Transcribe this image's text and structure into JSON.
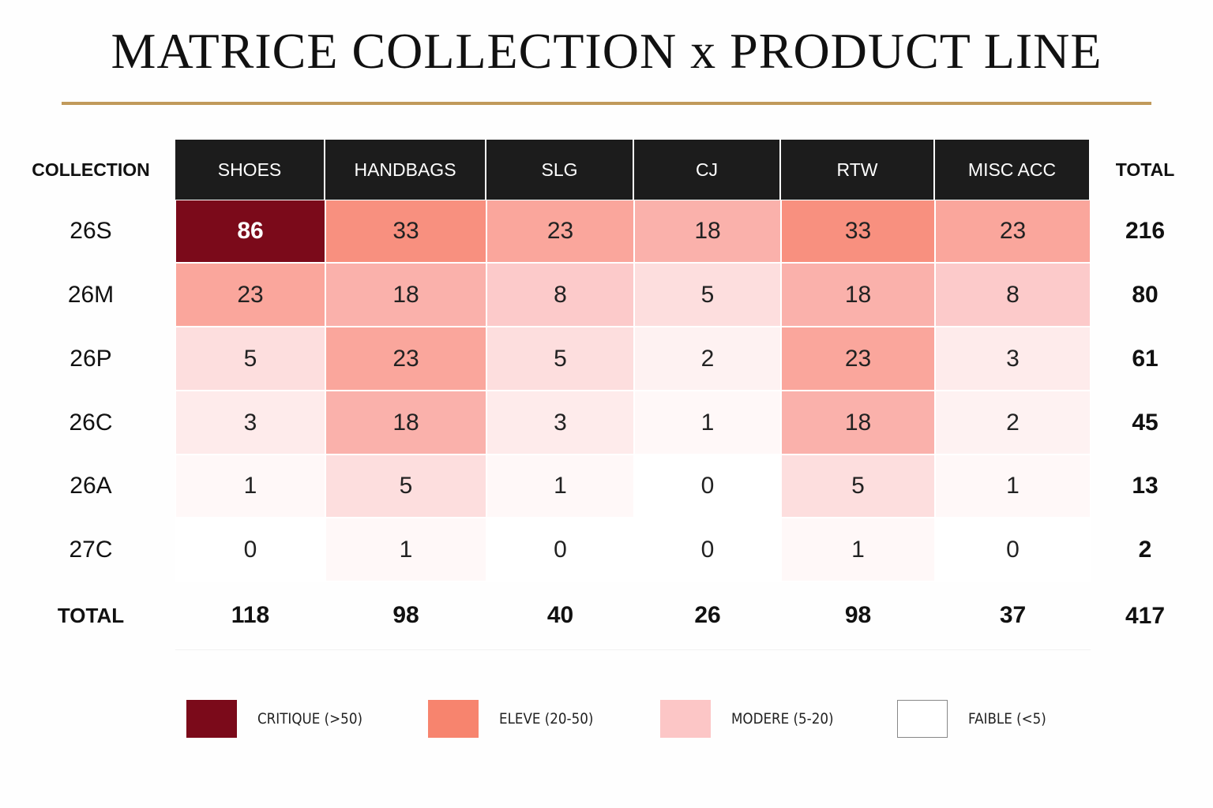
{
  "title": "MATRICE COLLECTION x PRODUCT LINE",
  "table": {
    "corner": "COLLECTION",
    "columns": [
      "SHOES",
      "HANDBAGS",
      "SLG",
      "CJ",
      "RTW",
      "MISC ACC"
    ],
    "total_header": "TOTAL",
    "rows": [
      {
        "label": "26S",
        "values": [
          86,
          33,
          23,
          18,
          33,
          23
        ],
        "total": 216
      },
      {
        "label": "26M",
        "values": [
          23,
          18,
          8,
          5,
          18,
          8
        ],
        "total": 80
      },
      {
        "label": "26P",
        "values": [
          5,
          23,
          5,
          2,
          23,
          3
        ],
        "total": 61
      },
      {
        "label": "26C",
        "values": [
          3,
          18,
          3,
          1,
          18,
          2
        ],
        "total": 45
      },
      {
        "label": "26A",
        "values": [
          1,
          5,
          1,
          0,
          5,
          1
        ],
        "total": 13
      },
      {
        "label": "27C",
        "values": [
          0,
          1,
          0,
          0,
          1,
          0
        ],
        "total": 2
      }
    ],
    "totals": {
      "label": "TOTAL",
      "values": [
        118,
        98,
        40,
        26,
        98,
        37
      ],
      "grand": 417
    }
  },
  "legend": [
    {
      "label": "CRITIQUE (>50)",
      "color": "#7b0a1a"
    },
    {
      "label": "ELEVE (20-50)",
      "color": "#f7846e"
    },
    {
      "label": "MODERE (5-20)",
      "color": "#fcc6c6"
    },
    {
      "label": "FAIBLE (<5)",
      "color": "#ffffff"
    }
  ]
}
